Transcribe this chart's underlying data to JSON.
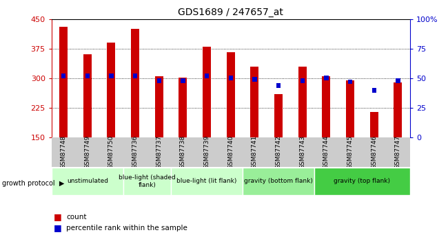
{
  "title": "GDS1689 / 247657_at",
  "samples": [
    "GSM87748",
    "GSM87749",
    "GSM87750",
    "GSM87736",
    "GSM87737",
    "GSM87738",
    "GSM87739",
    "GSM87740",
    "GSM87741",
    "GSM87742",
    "GSM87743",
    "GSM87744",
    "GSM87745",
    "GSM87746",
    "GSM87747"
  ],
  "counts": [
    430,
    360,
    390,
    425,
    305,
    302,
    380,
    365,
    330,
    260,
    330,
    305,
    295,
    215,
    290
  ],
  "percentiles": [
    52,
    52,
    52,
    52,
    48,
    48,
    52,
    50,
    49,
    44,
    48,
    50,
    47,
    40,
    48
  ],
  "baseline": 150,
  "ylim_left": [
    150,
    450
  ],
  "ylim_right": [
    0,
    100
  ],
  "yticks_left": [
    150,
    225,
    300,
    375,
    450
  ],
  "yticks_right": [
    0,
    25,
    50,
    75,
    100
  ],
  "bar_color": "#cc0000",
  "pct_color": "#0000cc",
  "left_axis_color": "#cc0000",
  "right_axis_color": "#0000cc",
  "group_defs": [
    {
      "label": "unstimulated",
      "start": 0,
      "end": 2,
      "color": "#ccffcc"
    },
    {
      "label": "blue-light (shaded\nflank)",
      "start": 3,
      "end": 4,
      "color": "#ccffcc"
    },
    {
      "label": "blue-light (lit flank)",
      "start": 5,
      "end": 7,
      "color": "#ccffcc"
    },
    {
      "label": "gravity (bottom flank)",
      "start": 8,
      "end": 10,
      "color": "#99ee99"
    },
    {
      "label": "gravity (top flank)",
      "start": 11,
      "end": 14,
      "color": "#44cc44"
    }
  ]
}
